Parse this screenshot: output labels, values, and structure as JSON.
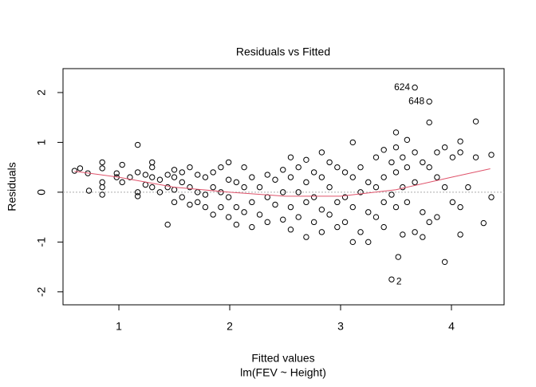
{
  "chart_data": {
    "type": "scatter",
    "title": "Residuals vs Fitted",
    "x_label": "Fitted values",
    "subtitle": "lm(FEV ~ Height)",
    "y_label": "Residuals",
    "xlim": [
      0.496,
      4.475
    ],
    "ylim": [
      -2.26,
      2.48
    ],
    "xticks": [
      1,
      2,
      3,
      4
    ],
    "yticks": [
      -2,
      -1,
      0,
      1,
      2
    ],
    "hline": 0,
    "color": "#000000",
    "x": [
      0.6,
      0.65,
      0.72,
      0.73,
      0.85,
      0.85,
      0.85,
      0.85,
      0.85,
      0.98,
      0.98,
      1.03,
      1.03,
      1.1,
      1.17,
      1.17,
      1.17,
      1.17,
      1.24,
      1.24,
      1.3,
      1.3,
      1.3,
      1.3,
      1.37,
      1.37,
      1.44,
      1.44,
      1.44,
      1.5,
      1.5,
      1.5,
      1.5,
      1.57,
      1.57,
      1.57,
      1.64,
      1.64,
      1.64,
      1.71,
      1.71,
      1.71,
      1.78,
      1.78,
      1.78,
      1.85,
      1.85,
      1.85,
      1.92,
      1.92,
      1.92,
      1.99,
      1.99,
      1.99,
      1.99,
      2.06,
      2.06,
      2.06,
      2.13,
      2.13,
      2.13,
      2.2,
      2.2,
      2.2,
      2.27,
      2.27,
      2.34,
      2.34,
      2.34,
      2.41,
      2.41,
      2.48,
      2.48,
      2.48,
      2.55,
      2.55,
      2.55,
      2.55,
      2.62,
      2.62,
      2.62,
      2.69,
      2.69,
      2.69,
      2.69,
      2.76,
      2.76,
      2.76,
      2.83,
      2.83,
      2.83,
      2.83,
      2.9,
      2.9,
      2.9,
      2.97,
      2.97,
      2.97,
      3.04,
      3.04,
      3.04,
      3.11,
      3.11,
      3.11,
      3.11,
      3.18,
      3.18,
      3.18,
      3.25,
      3.25,
      3.25,
      3.32,
      3.32,
      3.32,
      3.39,
      3.39,
      3.39,
      3.39,
      3.46,
      3.46,
      3.46,
      3.5,
      3.5,
      3.5,
      3.5,
      3.52,
      3.56,
      3.56,
      3.56,
      3.6,
      3.6,
      3.6,
      3.67,
      3.67,
      3.67,
      3.67,
      3.74,
      3.74,
      3.74,
      3.8,
      3.8,
      3.8,
      3.8,
      3.87,
      3.87,
      3.87,
      3.94,
      3.94,
      3.94,
      4.01,
      4.01,
      4.08,
      4.08,
      4.08,
      4.08,
      4.15,
      4.22,
      4.22,
      4.29,
      4.36,
      4.36
    ],
    "values": [
      0.43,
      0.48,
      0.38,
      0.03,
      0.6,
      0.48,
      0.2,
      0.1,
      -0.05,
      0.38,
      0.3,
      0.55,
      0.2,
      0.3,
      0.95,
      0.4,
      0.0,
      -0.08,
      0.35,
      0.15,
      0.6,
      0.5,
      0.3,
      0.1,
      0.25,
      0.0,
      0.35,
      0.1,
      -0.65,
      0.45,
      0.3,
      0.05,
      -0.2,
      0.4,
      0.2,
      -0.1,
      0.5,
      0.1,
      -0.25,
      0.35,
      0.0,
      -0.2,
      0.3,
      -0.05,
      -0.3,
      0.4,
      0.1,
      -0.45,
      0.5,
      0.0,
      -0.3,
      0.6,
      0.25,
      -0.1,
      -0.5,
      0.2,
      -0.3,
      -0.65,
      0.5,
      0.1,
      -0.4,
      0.3,
      -0.2,
      -0.7,
      0.1,
      -0.45,
      0.35,
      -0.1,
      -0.6,
      0.25,
      -0.25,
      0.45,
      0.0,
      -0.55,
      0.7,
      0.3,
      -0.3,
      -0.75,
      0.5,
      0.0,
      -0.5,
      0.65,
      0.2,
      -0.2,
      -0.9,
      0.4,
      -0.1,
      -0.6,
      0.8,
      0.3,
      -0.35,
      -0.8,
      0.6,
      0.1,
      -0.45,
      0.5,
      -0.2,
      -0.7,
      0.4,
      -0.1,
      -0.6,
      1.0,
      0.3,
      -0.3,
      -1.0,
      0.5,
      0.0,
      -0.8,
      0.2,
      -0.4,
      -1.0,
      0.7,
      0.1,
      -0.5,
      0.85,
      0.3,
      -0.2,
      -0.7,
      0.6,
      -0.05,
      -1.75,
      1.2,
      0.9,
      0.4,
      -0.3,
      -1.3,
      0.7,
      0.1,
      -0.85,
      1.05,
      0.5,
      -0.2,
      2.1,
      0.8,
      0.2,
      -0.8,
      0.6,
      -0.4,
      -0.9,
      1.82,
      1.4,
      0.5,
      -0.6,
      0.8,
      0.3,
      -0.5,
      0.9,
      0.1,
      -1.4,
      0.7,
      -0.2,
      1.02,
      0.8,
      -0.3,
      -0.85,
      0.1,
      1.42,
      0.7,
      -0.62,
      0.75,
      -0.1
    ],
    "smooth": {
      "color": "#df536b",
      "x": [
        0.6,
        1,
        1.5,
        2,
        2.5,
        3,
        3.5,
        4,
        4.35
      ],
      "values": [
        0.42,
        0.3,
        0.1,
        0.0,
        -0.08,
        -0.08,
        0.05,
        0.3,
        0.47
      ]
    },
    "annotations": [
      {
        "label": "624",
        "x": 3.67,
        "y": 2.1
      },
      {
        "label": "648",
        "x": 3.8,
        "y": 1.82
      },
      {
        "label": "2",
        "x": 3.46,
        "y": -1.75
      }
    ]
  }
}
